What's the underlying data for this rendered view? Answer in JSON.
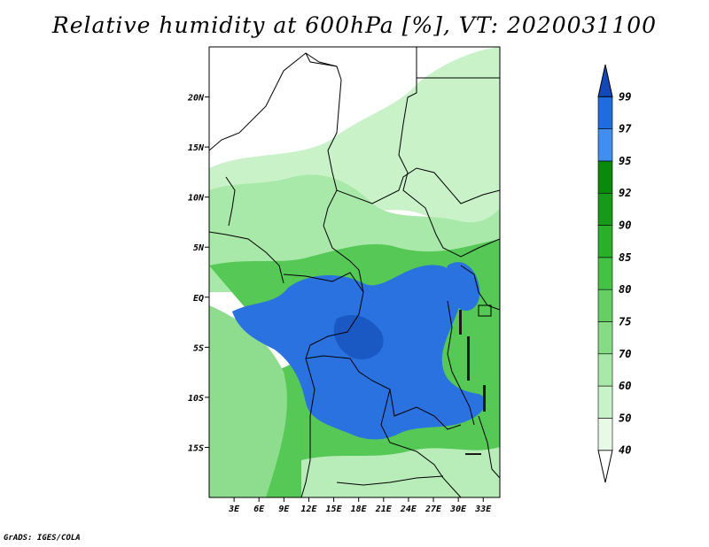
{
  "title": "Relative humidity at 600hPa [%], VT: 2020031100",
  "credit": "GrADS: IGES/COLA",
  "map": {
    "projection": "lat-lon",
    "lon_range": [
      0,
      35
    ],
    "lat_range": [
      -20,
      25
    ],
    "lat_ticks": [
      {
        "value": 20,
        "label": "20N"
      },
      {
        "value": 15,
        "label": "15N"
      },
      {
        "value": 10,
        "label": "10N"
      },
      {
        "value": 5,
        "label": "5N"
      },
      {
        "value": 0,
        "label": "EQ"
      },
      {
        "value": -5,
        "label": "5S"
      },
      {
        "value": -10,
        "label": "10S"
      },
      {
        "value": -15,
        "label": "15S"
      }
    ],
    "lon_ticks": [
      {
        "value": 3,
        "label": "3E"
      },
      {
        "value": 6,
        "label": "6E"
      },
      {
        "value": 9,
        "label": "9E"
      },
      {
        "value": 12,
        "label": "12E"
      },
      {
        "value": 15,
        "label": "15E"
      },
      {
        "value": 18,
        "label": "18E"
      },
      {
        "value": 21,
        "label": "21E"
      },
      {
        "value": 24,
        "label": "24E"
      },
      {
        "value": 27,
        "label": "27E"
      },
      {
        "value": 30,
        "label": "30E"
      },
      {
        "value": 33,
        "label": "33E"
      }
    ]
  },
  "colorbar": {
    "levels": [
      "40",
      "50",
      "60",
      "70",
      "75",
      "80",
      "85",
      "90",
      "92",
      "95",
      "97",
      "99"
    ],
    "colors": [
      "#ffffff",
      "#e6fae6",
      "#c8f2c8",
      "#a8e8a8",
      "#86dc86",
      "#64d064",
      "#44c244",
      "#29b029",
      "#179a17",
      "#0a8a0a",
      "#3f8ef0",
      "#1f6cdc",
      "#1248b8"
    ]
  },
  "regions": [
    {
      "name": "humid-core",
      "color": "#2a72e0"
    },
    {
      "name": "moist-band",
      "color": "#33b533"
    },
    {
      "name": "light-moist",
      "color": "#9fe39f"
    }
  ]
}
